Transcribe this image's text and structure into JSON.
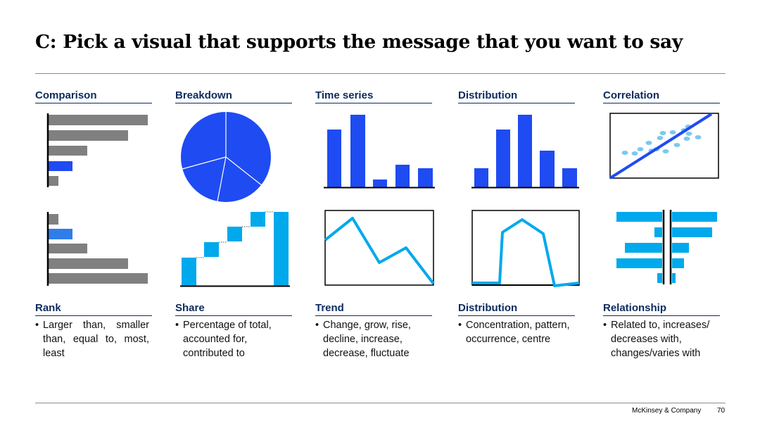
{
  "title": "C: Pick a visual that supports the message that you want to say",
  "colors": {
    "dark_blue": "#0b2a5e",
    "blue": "#1f4bf2",
    "light_blue": "#00a9ec",
    "dot_blue": "#7cc8f0",
    "gray": "#808080"
  },
  "columns": [
    {
      "category": "Comparison",
      "use": "Rank",
      "description": "Larger than, smaller than, equal to, most, least"
    },
    {
      "category": "Breakdown",
      "use": "Share",
      "description": "Percentage of total, accounted for, contributed to"
    },
    {
      "category": "Time series",
      "use": "Trend",
      "description": "Change, grow, rise, decline, increase, decrease, fluctuate"
    },
    {
      "category": "Distribution",
      "use": "Distribution",
      "description": "Concentration, pattern, occurrence, centre"
    },
    {
      "category": "Correlation",
      "use": "Relationship",
      "description": "Related to, increases/ decreases with, changes/varies with"
    }
  ],
  "footer": {
    "brand": "McKinsey & Company",
    "page": "70"
  }
}
